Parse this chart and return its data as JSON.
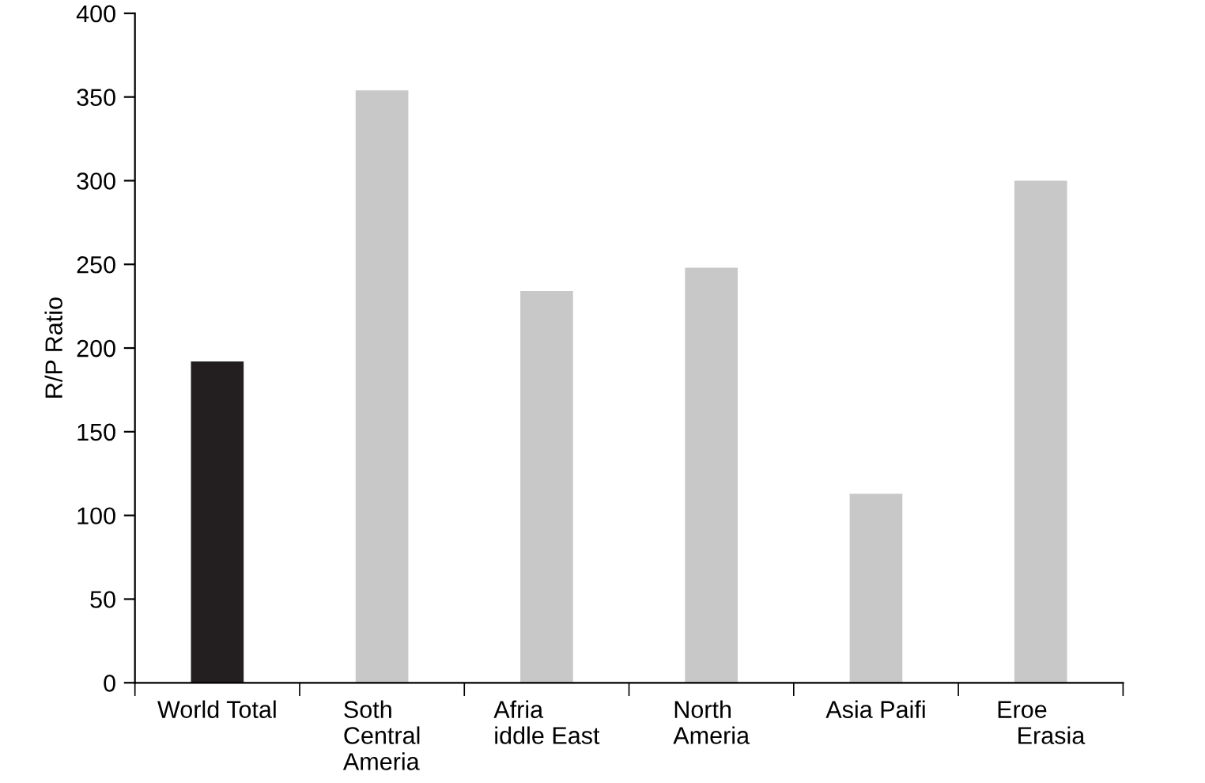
{
  "chart_data": {
    "type": "bar",
    "ylabel": "R/P Ratio",
    "categories": [
      "World Total",
      "Soth\nCentral\nAmeria",
      "Afria\niddle East",
      "North\nAmeria",
      "Asia Paifi",
      "Eroe\n   Erasia"
    ],
    "values": [
      192,
      354,
      234,
      248,
      113,
      300
    ],
    "colors": [
      "#231f20",
      "#c8c8c8",
      "#c8c8c8",
      "#c8c8c8",
      "#c8c8c8",
      "#c8c8c8"
    ],
    "ylim": [
      0,
      400
    ],
    "yticks": [
      0,
      50,
      100,
      150,
      200,
      250,
      300,
      350,
      400
    ],
    "grid": false,
    "legend": false
  }
}
